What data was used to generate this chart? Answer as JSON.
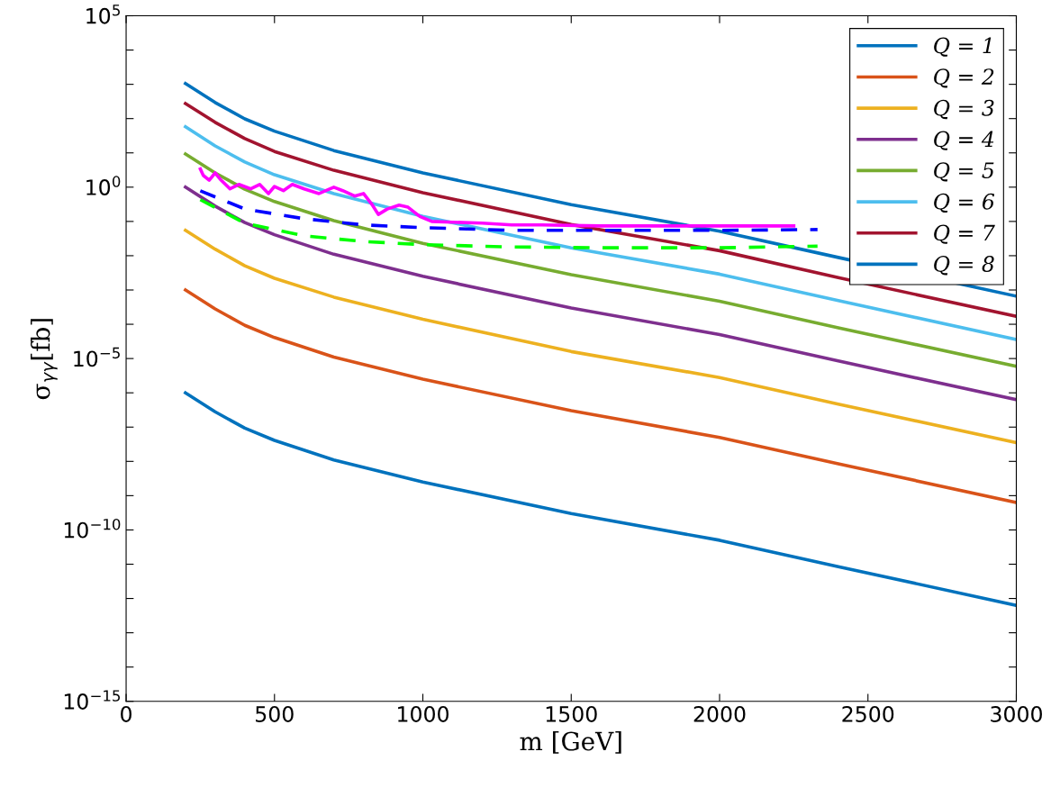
{
  "chart_data": {
    "type": "line",
    "xlabel": "m [GeV]",
    "ylabel": "σ$_{γγ}$[fb]",
    "log": "y",
    "x": [
      200,
      300,
      400,
      500,
      700,
      1000,
      1500,
      2000,
      2400,
      3000
    ],
    "xlim": [
      0,
      3000
    ],
    "xticks": [
      0,
      500,
      1000,
      1500,
      2000,
      2500,
      3000
    ],
    "ylim": [
      1e-15,
      100000.0
    ],
    "yticks": [
      {
        "value": 1e-15,
        "label": "10$^{−15}$"
      },
      {
        "value": 1e-14,
        "label": null
      },
      {
        "value": 1e-13,
        "label": null
      },
      {
        "value": 1e-12,
        "label": null
      },
      {
        "value": 1e-11,
        "label": null
      },
      {
        "value": 1e-10,
        "label": "10$^{−10}$"
      },
      {
        "value": 1e-09,
        "label": null
      },
      {
        "value": 1e-08,
        "label": null
      },
      {
        "value": 1e-07,
        "label": null
      },
      {
        "value": 1e-06,
        "label": null
      },
      {
        "value": 1e-05,
        "label": "10$^{−5}$"
      },
      {
        "value": 0.0001,
        "label": null
      },
      {
        "value": 0.001,
        "label": null
      },
      {
        "value": 0.01,
        "label": null
      },
      {
        "value": 0.1,
        "label": null
      },
      {
        "value": 1,
        "label": "10$^{0}$"
      },
      {
        "value": 10,
        "label": null
      },
      {
        "value": 100,
        "label": null
      },
      {
        "value": 1000,
        "label": null
      },
      {
        "value": 10000,
        "label": null
      },
      {
        "value": 100000.0,
        "label": "10$^{5}$"
      }
    ],
    "grid": false,
    "legend": "top right",
    "marker": "none",
    "line_style": "solid",
    "series": [
      {
        "name": "Q = 1",
        "color": "#0072bd",
        "values": [
          1e-06,
          2.8e-07,
          9.3e-08,
          4.1e-08,
          1.1e-08,
          2.5e-09,
          3e-10,
          5e-11,
          8.5e-12,
          6.3e-13
        ]
      },
      {
        "name": "Q = 2",
        "color": "#d95319",
        "values": [
          0.001,
          0.00028,
          9.3e-05,
          4.1e-05,
          1.1e-05,
          2.5e-06,
          3e-07,
          5e-08,
          8.5e-09,
          6.3e-10
        ]
      },
      {
        "name": "Q = 3",
        "color": "#edb120",
        "values": [
          0.055,
          0.0155,
          0.0051,
          0.0022,
          0.00062,
          0.00014,
          1.6e-05,
          2.8e-06,
          4.7e-07,
          3.5e-08
        ]
      },
      {
        "name": "Q = 4",
        "color": "#7e2f8e",
        "values": [
          1.0,
          0.28,
          0.093,
          0.041,
          0.011,
          0.0025,
          0.0003,
          5e-05,
          8.5e-06,
          6.3e-07
        ]
      },
      {
        "name": "Q = 5",
        "color": "#77ac30",
        "values": [
          9.3,
          2.6,
          0.87,
          0.38,
          0.105,
          0.023,
          0.0028,
          0.00047,
          7.9e-05,
          5.9e-06
        ]
      },
      {
        "name": "Q = 6",
        "color": "#4dbeee",
        "values": [
          58,
          16,
          5.4,
          2.3,
          0.65,
          0.14,
          0.017,
          0.0029,
          0.00049,
          3.6e-05
        ]
      },
      {
        "name": "Q = 7",
        "color": "#a2142f",
        "values": [
          275,
          78,
          26,
          11,
          3.1,
          0.69,
          0.081,
          0.014,
          0.0023,
          0.00017
        ]
      },
      {
        "name": "Q = 8",
        "color": "#0072bd",
        "values": [
          1050,
          295,
          98,
          43,
          11.7,
          2.6,
          0.31,
          0.052,
          0.0089,
          0.00066
        ]
      },
      {
        "color": "#ff00ff",
        "x": [
          250,
          260,
          280,
          300,
          320,
          350,
          380,
          420,
          450,
          480,
          500,
          530,
          560,
          600,
          650,
          700,
          730,
          770,
          800,
          830,
          850,
          880,
          920,
          950,
          990,
          1030,
          1100,
          1200,
          1300,
          1400,
          1600,
          1800,
          2000,
          2250
        ],
        "values": [
          3.4,
          2.2,
          1.6,
          2.6,
          1.6,
          0.89,
          1.2,
          0.89,
          1.2,
          0.65,
          1.05,
          0.79,
          1.2,
          0.89,
          0.65,
          1.0,
          0.79,
          0.55,
          0.65,
          0.3,
          0.16,
          0.23,
          0.3,
          0.26,
          0.14,
          0.1,
          0.095,
          0.089,
          0.079,
          0.079,
          0.074,
          0.074,
          0.074,
          0.074
        ]
      },
      {
        "color": "#0000ff",
        "line_style": "dashed",
        "x": [
          250,
          400,
          600,
          800,
          1000,
          1300,
          1600,
          2000,
          2330
        ],
        "values": [
          0.78,
          0.23,
          0.12,
          0.079,
          0.066,
          0.055,
          0.055,
          0.055,
          0.058
        ]
      },
      {
        "color": "#00ff00",
        "line_style": "dashed",
        "x": [
          250,
          400,
          600,
          800,
          1000,
          1300,
          1600,
          2000,
          2330
        ],
        "values": [
          0.43,
          0.089,
          0.038,
          0.026,
          0.021,
          0.018,
          0.017,
          0.017,
          0.019
        ]
      }
    ]
  }
}
